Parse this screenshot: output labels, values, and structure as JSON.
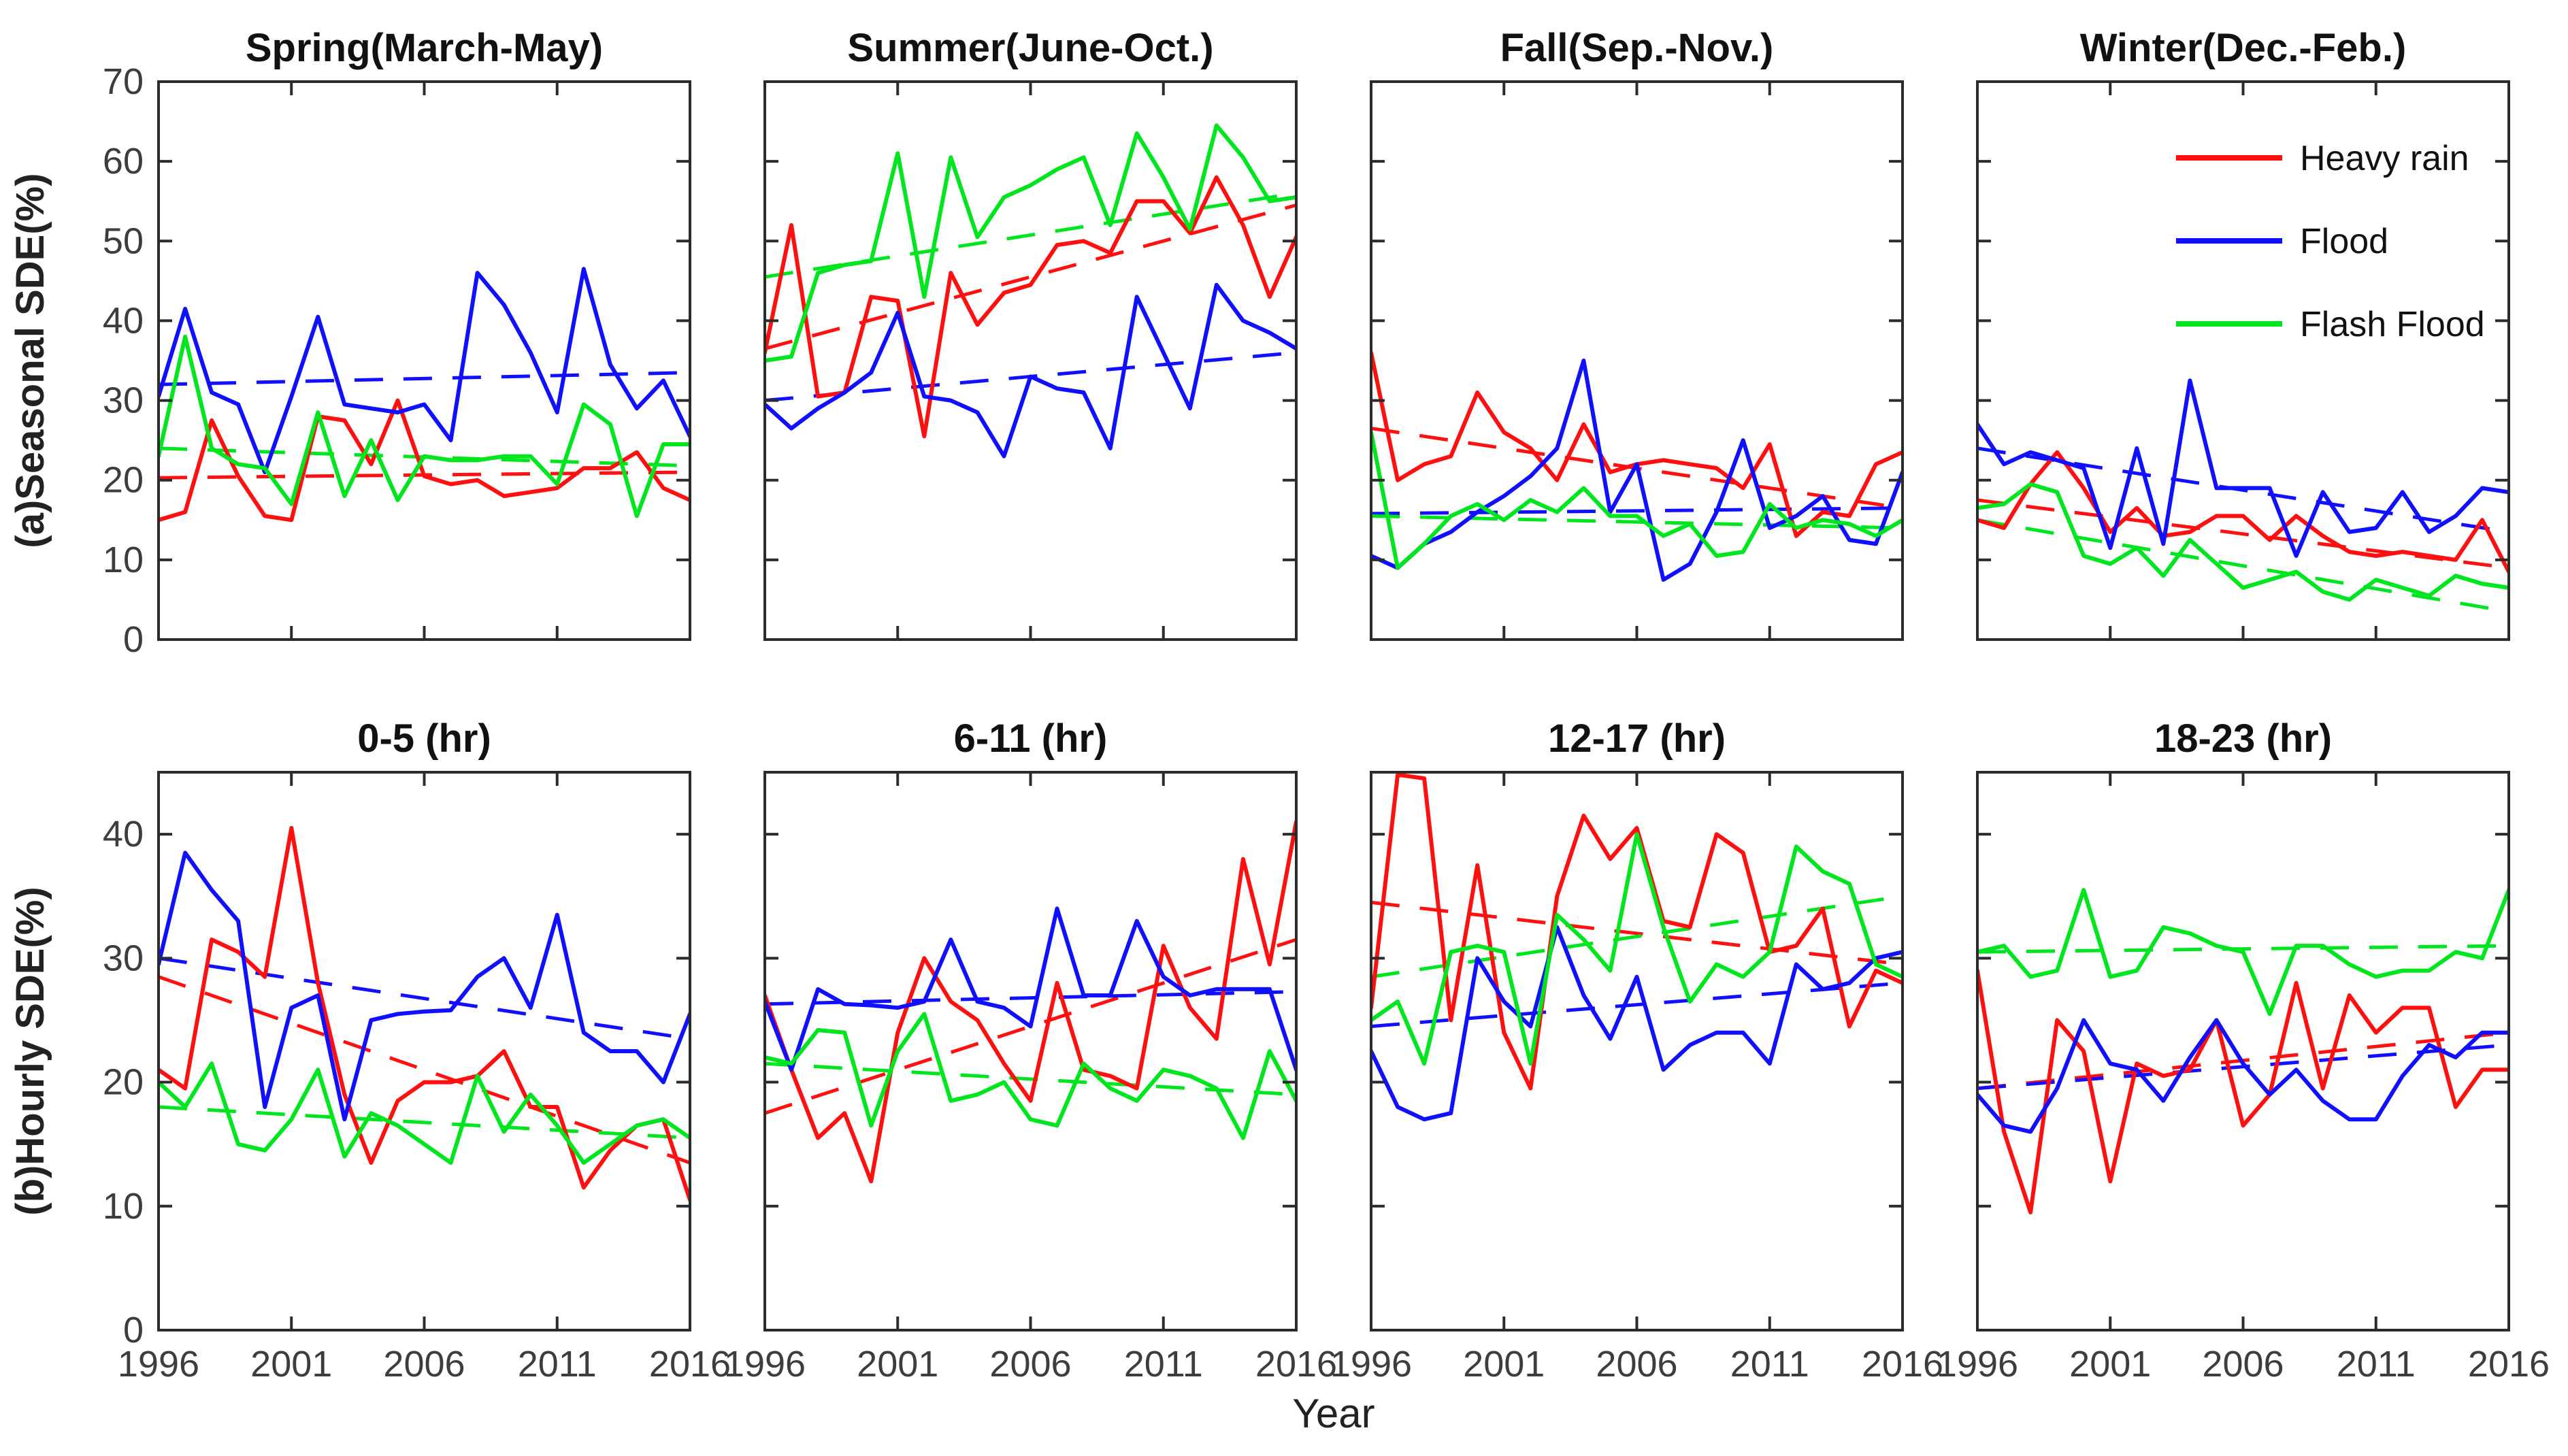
{
  "figure": {
    "background": "#ffffff",
    "axis_color": "#2b2b2b",
    "tick_label_color": "#3d3d3d",
    "title_color": "#111111",
    "xlabel": "Year",
    "row_labels": [
      "(a)Seasonal SDE(%)",
      "(b)Hourly SDE(%)"
    ],
    "x_ticks": [
      1996,
      2001,
      2006,
      2011,
      2016
    ],
    "years_range": [
      1996,
      2016
    ],
    "years_step": 1,
    "legend": {
      "entries": [
        {
          "label": "Heavy rain",
          "color": "#ff1010"
        },
        {
          "label": "Flood",
          "color": "#1010ff"
        },
        {
          "label": "Flash Flood",
          "color": "#00e61e"
        }
      ]
    }
  },
  "chart_data": [
    {
      "type": "line",
      "title": "Spring(March-May)",
      "row": 0,
      "col": 0,
      "ylim": [
        0,
        70
      ],
      "yticks": [
        0,
        10,
        20,
        30,
        40,
        50,
        60,
        70
      ],
      "ytick_labels_shown": true,
      "xtick_labels_shown": false,
      "series": [
        {
          "name": "Heavy rain",
          "color": "#ff1010",
          "values": [
            15,
            16,
            27.5,
            20.5,
            15.5,
            15,
            28,
            27.5,
            22,
            30,
            20.5,
            19.5,
            20,
            18,
            18.5,
            19,
            21.5,
            21.5,
            23.5,
            19,
            17.5
          ],
          "trend": [
            20.3,
            21
          ]
        },
        {
          "name": "Flood",
          "color": "#1010ff",
          "values": [
            30.5,
            41.5,
            31,
            29.5,
            21,
            30.5,
            40.5,
            29.5,
            29,
            28.5,
            29.5,
            25,
            46,
            42,
            36,
            28.5,
            46.5,
            34.5,
            29,
            32.5,
            25.5
          ],
          "trend": [
            32,
            33.5
          ]
        },
        {
          "name": "Flash Flood",
          "color": "#00e61e",
          "values": [
            23,
            38,
            24,
            22,
            21.5,
            17,
            28.5,
            18,
            25,
            17.5,
            23,
            22.5,
            22.5,
            23,
            23,
            19.5,
            29.5,
            27,
            15.5,
            24.5,
            24.5
          ],
          "trend": [
            24,
            21.8
          ]
        }
      ]
    },
    {
      "type": "line",
      "title": "Summer(June-Oct.)",
      "row": 0,
      "col": 1,
      "ylim": [
        0,
        70
      ],
      "yticks": [
        0,
        10,
        20,
        30,
        40,
        50,
        60,
        70
      ],
      "ytick_labels_shown": false,
      "xtick_labels_shown": false,
      "series": [
        {
          "name": "Heavy rain",
          "color": "#ff1010",
          "values": [
            36,
            52,
            30.5,
            31,
            43,
            42.5,
            25.5,
            46,
            39.5,
            43.5,
            44.5,
            49.5,
            50,
            48.5,
            55,
            55,
            51,
            58,
            52,
            43,
            50.5
          ],
          "trend": [
            36.5,
            54.5
          ]
        },
        {
          "name": "Flood",
          "color": "#1010ff",
          "values": [
            29.5,
            26.5,
            29,
            31,
            33.5,
            41,
            30.5,
            30,
            28.5,
            23,
            33,
            31.5,
            31,
            24,
            43,
            36,
            29,
            44.5,
            40,
            38.5,
            36.5
          ],
          "trend": [
            30,
            36
          ]
        },
        {
          "name": "Flash Flood",
          "color": "#00e61e",
          "values": [
            35,
            35.5,
            46,
            47,
            47.5,
            61,
            43,
            60.5,
            50.5,
            55.5,
            57,
            59,
            60.5,
            52,
            63.5,
            58,
            51.5,
            64.5,
            60.5,
            55,
            55.5
          ],
          "trend": [
            45.5,
            56
          ]
        }
      ]
    },
    {
      "type": "line",
      "title": "Fall(Sep.-Nov.)",
      "row": 0,
      "col": 2,
      "ylim": [
        0,
        70
      ],
      "yticks": [
        0,
        10,
        20,
        30,
        40,
        50,
        60,
        70
      ],
      "ytick_labels_shown": false,
      "xtick_labels_shown": false,
      "series": [
        {
          "name": "Heavy rain",
          "color": "#ff1010",
          "values": [
            36,
            20,
            22,
            23,
            31,
            26,
            24,
            20,
            27,
            21,
            22,
            22.5,
            22,
            21.5,
            19,
            24.5,
            13,
            16,
            15.5,
            22,
            23.5
          ],
          "trend": [
            26.5,
            16.5
          ]
        },
        {
          "name": "Flood",
          "color": "#1010ff",
          "values": [
            10.5,
            9,
            12,
            13.5,
            16,
            18,
            20.5,
            24,
            35,
            16,
            22,
            7.5,
            9.5,
            16,
            25,
            14,
            15.5,
            18,
            12.5,
            12,
            21
          ],
          "trend": [
            15.8,
            16.5
          ]
        },
        {
          "name": "Flash Flood",
          "color": "#00e61e",
          "values": [
            26,
            9,
            12,
            15.5,
            17,
            15,
            17.5,
            16,
            19,
            15.5,
            15.5,
            13,
            14.5,
            10.5,
            11,
            17,
            14,
            15,
            14.5,
            13,
            15
          ],
          "trend": [
            15.5,
            14
          ]
        }
      ]
    },
    {
      "type": "line",
      "title": "Winter(Dec.-Feb.)",
      "row": 0,
      "col": 3,
      "legend": true,
      "ylim": [
        0,
        70
      ],
      "yticks": [
        0,
        10,
        20,
        30,
        40,
        50,
        60,
        70
      ],
      "ytick_labels_shown": false,
      "xtick_labels_shown": false,
      "series": [
        {
          "name": "Heavy rain",
          "color": "#ff1010",
          "values": [
            15,
            14,
            19.5,
            23.5,
            19,
            13.5,
            16.5,
            13,
            13.5,
            15.5,
            15.5,
            12.5,
            15.5,
            13,
            11,
            10.5,
            11,
            10.5,
            10,
            15,
            8.5
          ],
          "trend": [
            17.5,
            9
          ]
        },
        {
          "name": "Flood",
          "color": "#1010ff",
          "values": [
            27,
            22,
            23.5,
            22.5,
            21.5,
            11.5,
            24,
            12,
            32.5,
            19,
            19,
            19,
            10.5,
            18.5,
            13.5,
            14,
            18.5,
            13.5,
            15.5,
            19,
            18.5
          ],
          "trend": [
            24,
            13.5
          ]
        },
        {
          "name": "Flash Flood",
          "color": "#00e61e",
          "values": [
            16.5,
            17,
            19.5,
            18.5,
            10.5,
            9.5,
            11.5,
            8,
            12.5,
            9.5,
            6.5,
            7.5,
            8.5,
            6,
            5,
            7.5,
            6.5,
            5.5,
            8,
            7,
            6.5
          ],
          "trend": [
            15,
            3.5
          ]
        }
      ]
    },
    {
      "type": "line",
      "title": "0-5 (hr)",
      "row": 1,
      "col": 0,
      "ylim": [
        0,
        45
      ],
      "yticks": [
        0,
        10,
        20,
        30,
        40
      ],
      "ytick_labels_shown": true,
      "xtick_labels_shown": true,
      "series": [
        {
          "name": "Heavy rain",
          "color": "#ff1010",
          "values": [
            21,
            19.5,
            31.5,
            30.5,
            28.5,
            40.5,
            28,
            19,
            13.5,
            18.5,
            20,
            20,
            20.5,
            22.5,
            18,
            18,
            11.5,
            14.5,
            16.5,
            17,
            10.5
          ],
          "trend": [
            28.5,
            13.5
          ]
        },
        {
          "name": "Flood",
          "color": "#1010ff",
          "values": [
            29.5,
            38.5,
            35.5,
            33,
            18,
            26,
            27,
            17,
            25,
            25.5,
            25.7,
            25.8,
            28.5,
            30,
            26,
            33.5,
            24,
            22.5,
            22.5,
            20,
            25.5
          ],
          "trend": [
            30,
            23.5
          ]
        },
        {
          "name": "Flash Flood",
          "color": "#00e61e",
          "values": [
            20,
            18,
            21.5,
            15,
            14.5,
            17,
            21,
            14,
            17.5,
            16.5,
            15,
            13.5,
            20.5,
            16,
            19,
            16.5,
            13.5,
            15,
            16.5,
            17,
            15.5
          ],
          "trend": [
            18,
            15.5
          ]
        }
      ]
    },
    {
      "type": "line",
      "title": "6-11 (hr)",
      "row": 1,
      "col": 1,
      "ylim": [
        0,
        45
      ],
      "yticks": [
        0,
        10,
        20,
        30,
        40
      ],
      "ytick_labels_shown": false,
      "xtick_labels_shown": true,
      "series": [
        {
          "name": "Heavy rain",
          "color": "#ff1010",
          "values": [
            27,
            21,
            15.5,
            17.5,
            12,
            24,
            30,
            26.5,
            25,
            21.5,
            18.5,
            28,
            21,
            20.5,
            19.5,
            31,
            26,
            23.5,
            38,
            29.5,
            41
          ],
          "trend": [
            17.5,
            31.5
          ]
        },
        {
          "name": "Flood",
          "color": "#1010ff",
          "values": [
            26.5,
            21,
            27.5,
            26.3,
            26.2,
            26,
            26.5,
            31.5,
            26.5,
            26,
            24.5,
            34,
            27,
            27,
            33,
            28.5,
            27,
            27.5,
            27.5,
            27.5,
            21
          ],
          "trend": [
            26.3,
            27.3
          ]
        },
        {
          "name": "Flash Flood",
          "color": "#00e61e",
          "values": [
            22,
            21.5,
            24.2,
            24,
            16.5,
            22.5,
            25.5,
            18.5,
            19,
            20,
            17,
            16.5,
            21.5,
            19.5,
            18.5,
            21,
            20.5,
            19.5,
            15.5,
            22.5,
            18.5
          ],
          "trend": [
            21.5,
            19
          ]
        }
      ]
    },
    {
      "type": "line",
      "title": "12-17 (hr)",
      "row": 1,
      "col": 2,
      "ylim": [
        0,
        45
      ],
      "yticks": [
        0,
        10,
        20,
        30,
        40
      ],
      "ytick_labels_shown": false,
      "xtick_labels_shown": true,
      "series": [
        {
          "name": "Heavy rain",
          "color": "#ff1010",
          "values": [
            26,
            44.8,
            44.5,
            25,
            37.5,
            24,
            19.5,
            35,
            41.5,
            38,
            40.5,
            33,
            32.5,
            40,
            38.5,
            30.5,
            31,
            34,
            24.5,
            29,
            28
          ],
          "trend": [
            34.5,
            29.5
          ]
        },
        {
          "name": "Flood",
          "color": "#1010ff",
          "values": [
            22.5,
            18,
            17,
            17.5,
            30,
            26.5,
            24.5,
            32.5,
            27,
            23.5,
            28.5,
            21,
            23,
            24,
            24,
            21.5,
            29.5,
            27.5,
            28,
            30,
            30.5
          ],
          "trend": [
            24.5,
            28
          ]
        },
        {
          "name": "Flash Flood",
          "color": "#00e61e",
          "values": [
            25,
            26.5,
            21.5,
            30.5,
            31,
            30.5,
            21.5,
            33.5,
            31.5,
            29,
            40,
            32.5,
            26.5,
            29.5,
            28.5,
            30.5,
            39,
            37,
            36,
            29.5,
            28.5
          ],
          "trend": [
            28.5,
            35
          ]
        }
      ]
    },
    {
      "type": "line",
      "title": "18-23 (hr)",
      "row": 1,
      "col": 3,
      "ylim": [
        0,
        45
      ],
      "yticks": [
        0,
        10,
        20,
        30,
        40
      ],
      "ytick_labels_shown": false,
      "xtick_labels_shown": true,
      "series": [
        {
          "name": "Heavy rain",
          "color": "#ff1010",
          "values": [
            29,
            16,
            9.5,
            25,
            22.5,
            12,
            21.5,
            20.5,
            21,
            25,
            16.5,
            19,
            28,
            19.5,
            27,
            24,
            26,
            26,
            18,
            21,
            21
          ],
          "trend": [
            19.5,
            24
          ]
        },
        {
          "name": "Flood",
          "color": "#1010ff",
          "values": [
            19,
            16.5,
            16,
            19.5,
            25,
            21.5,
            21,
            18.5,
            22,
            25,
            21.5,
            19,
            21,
            18.5,
            17,
            17,
            20.5,
            23,
            22,
            24,
            24
          ],
          "trend": [
            19.5,
            23
          ]
        },
        {
          "name": "Flash Flood",
          "color": "#00e61e",
          "values": [
            30.5,
            31,
            28.5,
            29,
            35.5,
            28.5,
            29,
            32.5,
            32,
            31,
            30.5,
            25.5,
            31,
            31,
            29.5,
            28.5,
            29,
            29,
            30.5,
            30,
            35.5
          ],
          "trend": [
            30.5,
            31
          ]
        }
      ]
    }
  ]
}
